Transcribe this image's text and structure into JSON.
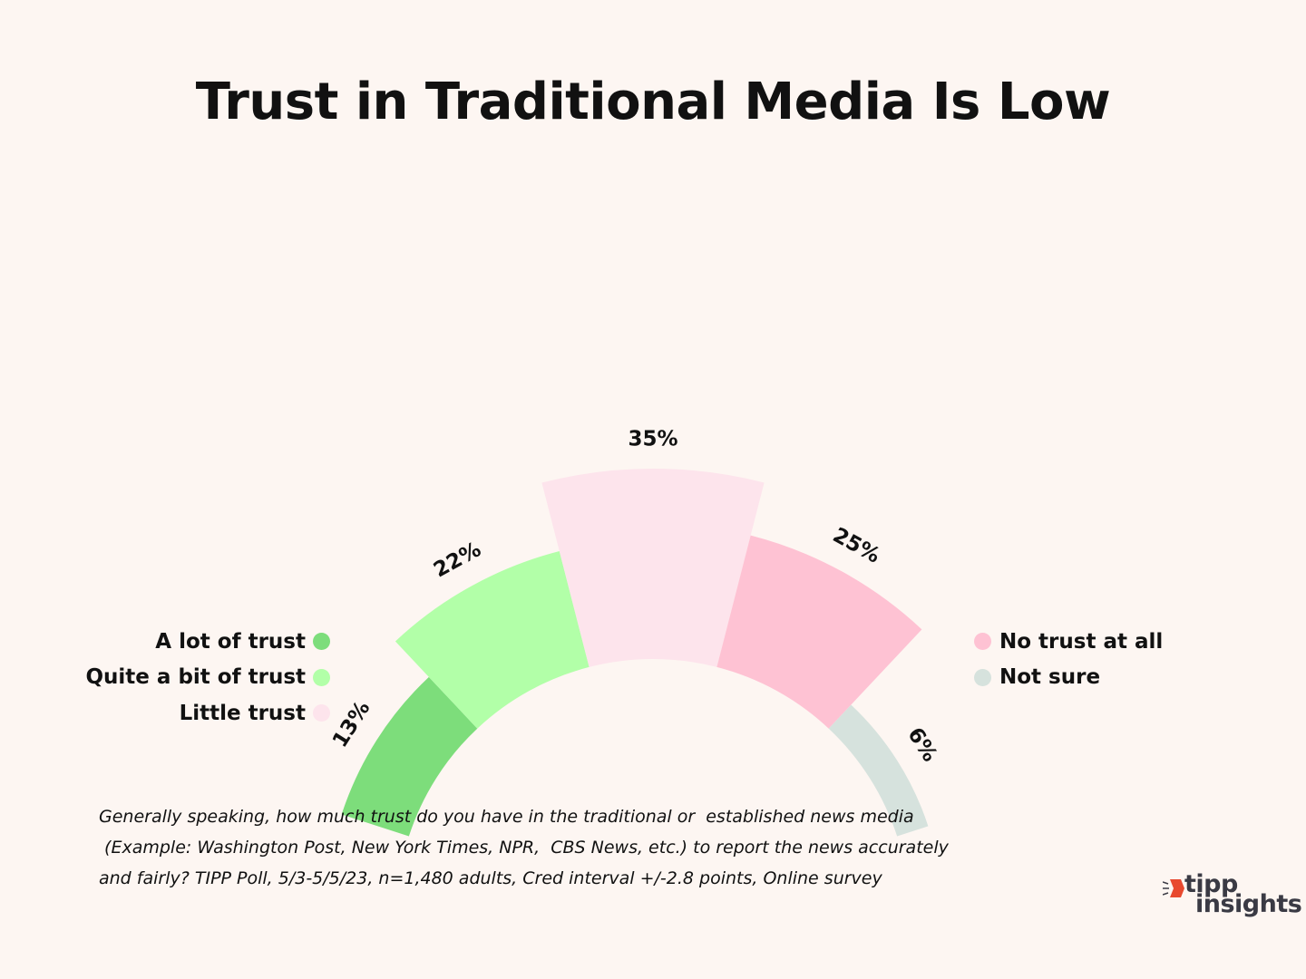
{
  "chart_data": {
    "type": "radial-bar",
    "title": "Trust in Traditional Media Is Low",
    "categories": [
      "A lot of trust",
      "Quite a bit of trust",
      "Little trust",
      "No trust at all",
      "Not sure"
    ],
    "values": [
      13,
      22,
      35,
      25,
      6
    ],
    "value_labels": [
      "13%",
      "22%",
      "35%",
      "25%",
      "6%"
    ],
    "colors": [
      "#7ddd7b",
      "#b2ffa8",
      "#fde4ec",
      "#fec2d3",
      "#d6e2dd"
    ],
    "legend_placement": "split-left-right",
    "grid": false
  },
  "legend": {
    "left": [
      {
        "label": "A lot of trust",
        "color": "#7ddd7b"
      },
      {
        "label": "Quite a bit of trust",
        "color": "#b2ffa8"
      },
      {
        "label": "Little trust",
        "color": "#fde4ec"
      }
    ],
    "right": [
      {
        "label": "No trust at all",
        "color": "#fec2d3"
      },
      {
        "label": "Not sure",
        "color": "#d6e2dd"
      }
    ]
  },
  "footnote": {
    "line1": "Generally speaking, how much trust do you have in the traditional or  established news media",
    "line2": " (Example: Washington Post, New York Times, NPR,  CBS News, etc.) to report the news accurately",
    "line3": "and fairly? TIPP Poll, 5/3-5/5/23, n=1,480 adults, Cred interval +/-2.8 points, Online survey"
  },
  "logo": {
    "line1": "tipp",
    "line2": "insights",
    "accent_color": "#e8492f",
    "text_color": "#3a3a44"
  }
}
